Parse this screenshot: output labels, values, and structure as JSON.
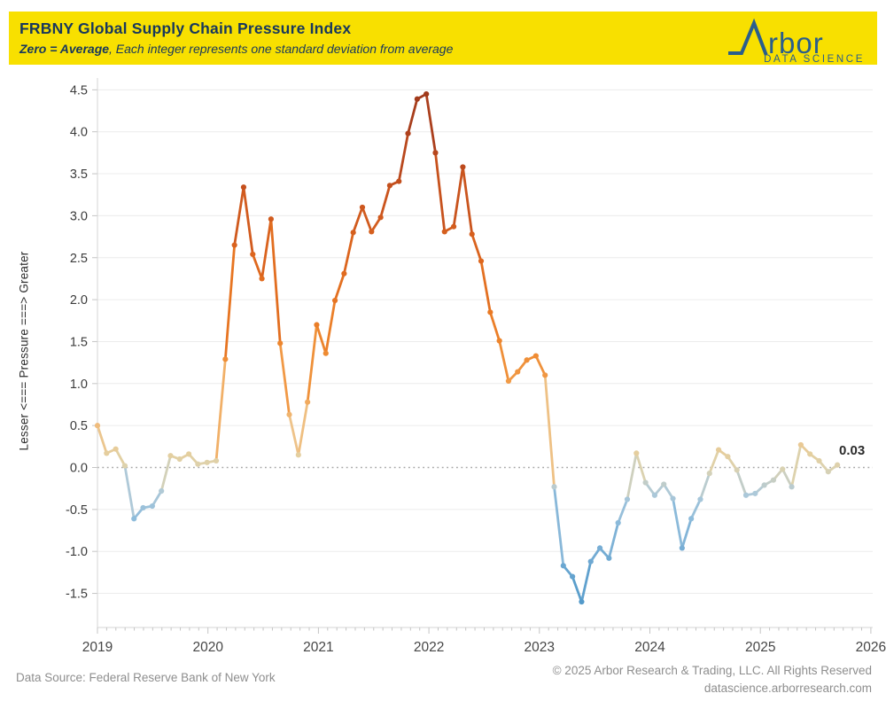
{
  "header": {
    "title": "FRBNY Global Supply Chain Pressure Index",
    "subtitle_emphasis": "Zero = Average",
    "subtitle_rest": ", Each integer represents one standard deviation from average",
    "band_color": "#F8E000",
    "text_color": "#17375D"
  },
  "logo": {
    "brand_text": "rbor",
    "brand_full": "Arbor",
    "tagline": "DATA SCIENCE",
    "color": "#2A5E8C"
  },
  "y_axis": {
    "title": "Lesser <=== Pressure ===> Greater",
    "tick_values": [
      4.5,
      4.0,
      3.5,
      3.0,
      2.5,
      2.0,
      1.5,
      1.0,
      0.5,
      0.0,
      -0.5,
      -1.0,
      -1.5
    ]
  },
  "x_axis": {
    "years": [
      "2019",
      "2020",
      "2021",
      "2022",
      "2023",
      "2024",
      "2025",
      "2026"
    ]
  },
  "annotation": {
    "end_label": "0.03"
  },
  "footer": {
    "source": "Data Source: Federal Reserve Bank of New York",
    "copyright": "© 2025 Arbor Research & Trading, LLC. All Rights Reserved",
    "website": "datascience.arborresearch.com"
  },
  "chart_data": {
    "type": "line",
    "title": "FRBNY Global Supply Chain Pressure Index",
    "frequency": "monthly",
    "start": "2019-01",
    "end": "2025-10",
    "xlabel": "",
    "ylabel": "Lesser <=== Pressure ===> Greater",
    "ylim": [
      -1.9,
      4.7
    ],
    "yticks": [
      4.5,
      4.0,
      3.5,
      3.0,
      2.5,
      2.0,
      1.5,
      1.0,
      0.5,
      0.0,
      -0.5,
      -1.0,
      -1.5
    ],
    "grid": true,
    "zero_reference_line": "dotted",
    "last_value_label": "0.03",
    "values": [
      0.5,
      0.17,
      0.22,
      0.02,
      -0.61,
      -0.48,
      -0.46,
      -0.28,
      0.14,
      0.1,
      0.16,
      0.04,
      0.06,
      0.08,
      1.29,
      2.65,
      3.34,
      2.54,
      2.25,
      2.96,
      1.48,
      0.63,
      0.15,
      0.78,
      1.7,
      1.36,
      1.99,
      2.31,
      2.8,
      3.1,
      2.81,
      2.98,
      3.36,
      3.41,
      3.98,
      4.39,
      4.45,
      3.75,
      2.81,
      2.87,
      3.58,
      2.78,
      2.46,
      1.85,
      1.51,
      1.03,
      1.14,
      1.28,
      1.33,
      1.1,
      -0.23,
      -1.17,
      -1.3,
      -1.6,
      -1.12,
      -0.96,
      -1.08,
      -0.66,
      -0.38,
      0.17,
      -0.18,
      -0.33,
      -0.2,
      -0.37,
      -0.96,
      -0.61,
      -0.38,
      -0.07,
      0.21,
      0.13,
      -0.03,
      -0.33,
      -0.31,
      -0.21,
      -0.15,
      -0.02,
      -0.23,
      0.27,
      0.16,
      0.08,
      -0.05,
      0.03
    ],
    "color_stops": [
      [
        -1.6,
        "#539aca"
      ],
      [
        -1.1,
        "#6fa9d2"
      ],
      [
        -0.6,
        "#8fbcdb"
      ],
      [
        -0.3,
        "#aec9d9"
      ],
      [
        -0.1,
        "#cfd0bd"
      ],
      [
        0.0,
        "#dcd2af"
      ],
      [
        0.15,
        "#e4cfa0"
      ],
      [
        0.4,
        "#eec389"
      ],
      [
        0.7,
        "#f1af66"
      ],
      [
        1.0,
        "#f19c49"
      ],
      [
        1.4,
        "#ee8930"
      ],
      [
        1.9,
        "#e87723"
      ],
      [
        2.5,
        "#dd661e"
      ],
      [
        3.0,
        "#d05a1e"
      ],
      [
        3.5,
        "#c04c1d"
      ],
      [
        4.0,
        "#ae411d"
      ],
      [
        4.5,
        "#9e381b"
      ]
    ],
    "style": {
      "gridline_color": "#ececec",
      "axis_line_color": "#d6d6d6",
      "tick_color": "#c4c4c4",
      "zero_line_color": "#a6a6a6",
      "tick_label_color": "#3c3c3c",
      "year_label_color": "#464646"
    }
  }
}
